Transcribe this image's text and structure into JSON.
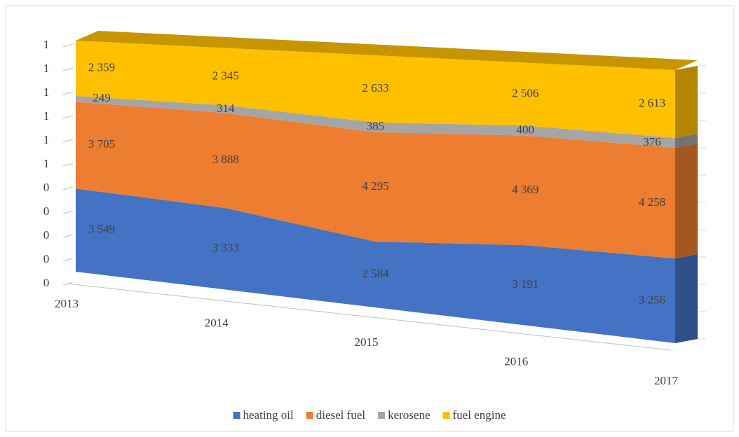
{
  "chart_data": {
    "type": "area3d_stacked100",
    "categories": [
      "2013",
      "2014",
      "2015",
      "2016",
      "2017"
    ],
    "series": [
      {
        "name": "heating oil",
        "color": "#4472c4",
        "values": [
          3549,
          3333,
          2584,
          3191,
          3256
        ],
        "value_labels": [
          "3 549",
          "3 333",
          "2 584",
          "3 191",
          "3 256"
        ]
      },
      {
        "name": "diesel fuel",
        "color": "#ed7d31",
        "values": [
          3705,
          3888,
          4295,
          4369,
          4258
        ],
        "value_labels": [
          "3 705",
          "3 888",
          "4 295",
          "4 369",
          "4 258"
        ]
      },
      {
        "name": "kerosene",
        "color": "#a5a5a5",
        "values": [
          249,
          314,
          385,
          400,
          376
        ]
      },
      {
        "name": "fuel engine",
        "color": "#ffc000",
        "values": [
          2359,
          2345,
          2633,
          2506,
          2613
        ],
        "value_labels": [
          "2 359",
          "2 345",
          "2 633",
          "2 506",
          "2 613"
        ]
      }
    ],
    "ylim": [
      0,
      1
    ],
    "yticks": [
      0,
      {
        "value": 0.1,
        "label": "0"
      },
      {
        "value": 0.2,
        "label": "0"
      },
      {
        "value": 0.3,
        "label": "0"
      },
      {
        "value": 0.4,
        "label": "0"
      },
      {
        "value": 0.5,
        "label": "1"
      },
      {
        "value": 0.6,
        "label": "1"
      },
      {
        "value": 0.7,
        "label": "1"
      },
      {
        "value": 0.8,
        "label": "1"
      },
      {
        "value": 0.9,
        "label": "1"
      },
      1
    ],
    "legend": "bottom"
  }
}
